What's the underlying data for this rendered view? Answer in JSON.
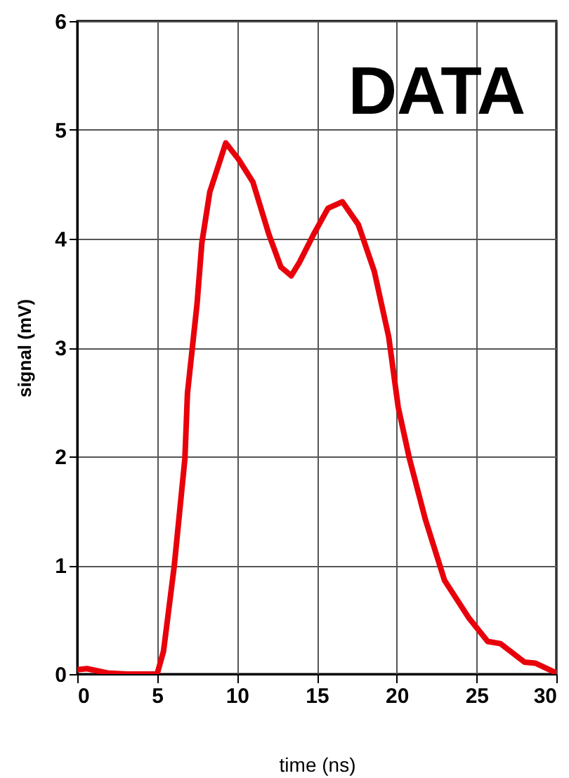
{
  "chart_data": {
    "type": "line",
    "xlabel": "time (ns)",
    "ylabel": "signal (mV)",
    "annotations": [
      "DATA"
    ],
    "xlim": [
      0,
      30
    ],
    "ylim": [
      0,
      6
    ],
    "xticks": [
      0,
      5,
      10,
      15,
      20,
      25,
      30
    ],
    "yticks": [
      0,
      1,
      2,
      3,
      4,
      5,
      6
    ],
    "grid": true,
    "line_style": "solid",
    "marker": "none",
    "series": [
      {
        "color": "#e8000b",
        "x": [
          0,
          0.6,
          1.9,
          3.1,
          5.0,
          5.4,
          6.07,
          6.74,
          6.9,
          7.5,
          7.8,
          8.3,
          9.3,
          10.1,
          11.0,
          12.0,
          12.75,
          13.4,
          13.9,
          14.8,
          15.7,
          16.6,
          17.6,
          18.6,
          19.5,
          20.1,
          20.8,
          21.8,
          23.0,
          24.5,
          25.7,
          26.5,
          28.0,
          28.7,
          30
        ],
        "values": [
          0.04,
          0.05,
          0.01,
          0,
          0,
          0.21,
          0.99,
          1.98,
          2.58,
          3.4,
          3.96,
          4.43,
          4.88,
          4.73,
          4.52,
          4.04,
          3.74,
          3.66,
          3.78,
          4.04,
          4.28,
          4.34,
          4.13,
          3.7,
          3.1,
          2.45,
          1.98,
          1.42,
          0.86,
          0.52,
          0.3,
          0.28,
          0.11,
          0.1,
          0.01
        ]
      }
    ]
  }
}
